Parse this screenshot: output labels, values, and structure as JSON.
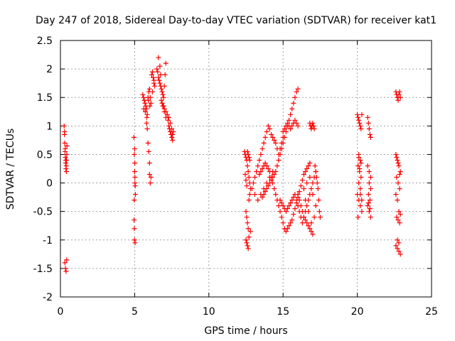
{
  "chart_data": {
    "type": "scatter",
    "title": "Day 247 of 2018, Sidereal Day-to-day VTEC variation (SDTVAR) for receiver kat1",
    "xlabel": "GPS time / hours",
    "ylabel": "SDTVAR / TECUs",
    "xlim": [
      0,
      25
    ],
    "ylim": [
      -2,
      2.5
    ],
    "xticks": [
      "0",
      "5",
      "10",
      "15",
      "20",
      "25"
    ],
    "yticks": [
      "-2",
      "-1.5",
      "-1",
      "-0.5",
      "0",
      "0.5",
      "1",
      "1.5",
      "2",
      "2.5"
    ],
    "grid": true,
    "marker": "+",
    "color": "#ff0000",
    "series": [
      {
        "name": "SDTVAR",
        "x": [
          0.25,
          0.27,
          0.29,
          0.31,
          0.33,
          0.35,
          0.37,
          0.39,
          0.41,
          0.43,
          0.28,
          0.32,
          0.36,
          0.4,
          0.44,
          0.3,
          0.34,
          0.38,
          0.42,
          4.95,
          4.98,
          5.0,
          5.02,
          5.05,
          4.97,
          5.01,
          5.04,
          4.96,
          4.99,
          5.03,
          4.98,
          5.0,
          5.02,
          5.55,
          5.6,
          5.65,
          5.7,
          5.75,
          5.8,
          5.85,
          5.9,
          5.95,
          6.0,
          6.05,
          6.1,
          5.62,
          5.72,
          5.82,
          5.92,
          6.02,
          5.8,
          5.85,
          5.9,
          5.95,
          6.0,
          6.0,
          6.05,
          6.1,
          6.15,
          6.2,
          6.25,
          6.3,
          6.35,
          6.2,
          6.3,
          6.5,
          6.55,
          6.6,
          6.65,
          6.7,
          6.75,
          6.8,
          6.85,
          6.9,
          6.95,
          7.0,
          7.05,
          7.1,
          6.6,
          6.7,
          6.8,
          6.9,
          7.0,
          7.1,
          6.75,
          6.85,
          6.95,
          7.0,
          7.1,
          7.2,
          7.25,
          7.3,
          7.35,
          7.4,
          7.45,
          7.5,
          7.55,
          7.6,
          7.3,
          7.4,
          7.5,
          7.55,
          12.4,
          12.45,
          12.5,
          12.55,
          12.6,
          12.65,
          12.7,
          12.75,
          12.8,
          12.5,
          12.55,
          12.6,
          12.65,
          12.7,
          12.5,
          12.55,
          12.6,
          12.65,
          12.7,
          12.75,
          12.45,
          12.5,
          12.55,
          12.6,
          12.65,
          12.7,
          12.75,
          12.8,
          12.9,
          13.0,
          13.1,
          13.2,
          13.3,
          13.4,
          13.5,
          13.6,
          13.7,
          13.8,
          13.9,
          14.0,
          14.1,
          14.2,
          14.3,
          14.4,
          14.5,
          14.6,
          14.7,
          14.8,
          14.9,
          15.0,
          13.1,
          13.3,
          13.5,
          13.7,
          13.9,
          14.1,
          14.3,
          13.6,
          13.7,
          13.8,
          13.9,
          14.0,
          14.1,
          14.2,
          14.3,
          14.4,
          14.5,
          14.6,
          14.7,
          14.8,
          14.9,
          15.0,
          15.1,
          15.2,
          15.3,
          15.4,
          15.5,
          15.6,
          15.7,
          15.8,
          15.9,
          16.0,
          13.4,
          13.5,
          13.6,
          13.7,
          13.8,
          13.9,
          14.0,
          14.1,
          14.2,
          14.3,
          14.4,
          14.5,
          14.6,
          14.7,
          14.8,
          14.9,
          15.0,
          15.1,
          15.2,
          15.3,
          15.4,
          15.5,
          15.6,
          15.7,
          15.8,
          15.9,
          16.0,
          16.1,
          16.2,
          16.3,
          16.4,
          16.5,
          16.6,
          16.7,
          16.8,
          14.8,
          14.9,
          15.0,
          15.1,
          15.2,
          15.3,
          15.4,
          15.5,
          15.6,
          15.7,
          15.8,
          15.9,
          16.0,
          16.1,
          16.2,
          16.3,
          16.4,
          16.5,
          16.6,
          16.7,
          16.8,
          16.9,
          17.0,
          17.1,
          17.2,
          15.0,
          15.1,
          15.2,
          15.3,
          15.4,
          15.5,
          15.6,
          15.7,
          15.8,
          15.9,
          16.0,
          16.0,
          16.1,
          16.2,
          16.3,
          16.4,
          16.5,
          16.6,
          16.7,
          16.8,
          16.9,
          17.0,
          17.1,
          17.2,
          16.4,
          16.6,
          16.8,
          17.0,
          16.5,
          16.7,
          16.9,
          16.8,
          16.85,
          16.9,
          16.95,
          17.0,
          17.05,
          17.1,
          17.15,
          17.2,
          17.25,
          17.3,
          17.35,
          17.4,
          17.45,
          17.5,
          20.0,
          20.05,
          20.1,
          20.15,
          20.2,
          20.25,
          20.3,
          20.1,
          20.2,
          20.05,
          20.15,
          20.25,
          20.1,
          20.2,
          20.0,
          20.1,
          20.2,
          20.3,
          20.05,
          20.15,
          20.25,
          20.1,
          20.2,
          20.3,
          20.7,
          20.75,
          20.8,
          20.85,
          20.9,
          20.7,
          20.8,
          20.9,
          20.75,
          20.85,
          20.7,
          20.8,
          20.9,
          20.75,
          20.85,
          20.8,
          20.9,
          22.6,
          22.65,
          22.7,
          22.75,
          22.8,
          22.85,
          22.9,
          22.6,
          22.7,
          22.8,
          22.9,
          22.65,
          22.75,
          22.85,
          22.6,
          22.7,
          22.8,
          22.9,
          22.65,
          22.75,
          22.85,
          22.7,
          22.8,
          22.6,
          22.7,
          22.8,
          22.9,
          22.65,
          22.75,
          22.85
        ],
        "y": [
          1.0,
          0.85,
          0.7,
          0.55,
          0.45,
          0.35,
          0.25,
          0.3,
          0.4,
          0.5,
          0.9,
          0.6,
          0.4,
          0.2,
          0.65,
          -1.4,
          -1.5,
          -1.55,
          -1.35,
          0.8,
          0.5,
          0.2,
          0.0,
          -0.2,
          -0.3,
          0.35,
          -0.05,
          -0.65,
          -1.0,
          -1.05,
          -0.8,
          0.6,
          0.1,
          1.55,
          1.5,
          1.45,
          1.4,
          1.35,
          1.3,
          1.2,
          1.5,
          1.6,
          1.65,
          1.5,
          1.4,
          1.3,
          1.25,
          1.15,
          1.45,
          1.35,
          1.05,
          0.95,
          0.7,
          0.55,
          0.35,
          0.15,
          0.0,
          0.1,
          1.9,
          1.95,
          1.85,
          1.75,
          1.7,
          1.6,
          1.8,
          2.0,
          1.95,
          1.85,
          1.8,
          1.75,
          1.7,
          1.65,
          1.6,
          1.55,
          1.5,
          1.7,
          1.9,
          2.1,
          2.2,
          2.05,
          1.45,
          1.35,
          1.3,
          1.25,
          1.9,
          1.4,
          1.35,
          1.25,
          1.15,
          1.2,
          1.1,
          1.0,
          0.95,
          0.9,
          0.85,
          0.8,
          0.75,
          0.9,
          1.15,
          1.05,
          0.95,
          0.85,
          0.55,
          0.5,
          0.45,
          0.4,
          0.3,
          0.2,
          0.1,
          0.0,
          -0.1,
          -1.0,
          -1.05,
          -1.1,
          -1.15,
          -0.95,
          -0.5,
          -0.6,
          -0.7,
          -0.8,
          -0.3,
          -0.2,
          0.15,
          0.05,
          -0.05,
          0.55,
          0.5,
          0.45,
          0.4,
          -0.85,
          -0.1,
          0.0,
          0.1,
          0.2,
          0.3,
          0.4,
          0.5,
          0.6,
          0.7,
          0.8,
          0.9,
          1.0,
          0.95,
          0.85,
          0.8,
          0.75,
          0.7,
          0.6,
          0.5,
          0.6,
          0.7,
          0.8,
          -0.2,
          -0.3,
          -0.2,
          -0.1,
          0.0,
          0.1,
          0.2,
          -0.25,
          -0.2,
          -0.15,
          -0.1,
          -0.05,
          0.0,
          0.05,
          0.1,
          0.15,
          0.2,
          0.3,
          0.4,
          0.5,
          0.6,
          0.7,
          0.8,
          0.9,
          1.0,
          1.1,
          1.2,
          1.3,
          1.4,
          1.5,
          1.6,
          1.65,
          0.15,
          0.2,
          0.25,
          0.3,
          0.35,
          0.3,
          0.25,
          0.2,
          0.1,
          0.0,
          -0.1,
          -0.2,
          -0.3,
          -0.4,
          -0.5,
          -0.6,
          -0.7,
          -0.8,
          -0.85,
          -0.8,
          -0.75,
          -0.7,
          -0.65,
          -0.55,
          -0.45,
          -0.35,
          -0.25,
          -0.15,
          -0.05,
          0.05,
          0.15,
          0.2,
          0.25,
          0.3,
          0.35,
          -0.3,
          -0.35,
          -0.4,
          -0.45,
          -0.5,
          -0.45,
          -0.4,
          -0.35,
          -0.3,
          -0.25,
          -0.2,
          -0.3,
          -0.4,
          -0.5,
          -0.6,
          -0.7,
          -0.6,
          -0.5,
          -0.4,
          -0.3,
          -0.2,
          -0.1,
          0.0,
          0.1,
          0.2,
          0.9,
          0.95,
          1.0,
          1.05,
          1.0,
          0.95,
          1.0,
          1.05,
          1.1,
          1.05,
          1.0,
          -0.2,
          -0.3,
          -0.4,
          -0.5,
          -0.6,
          -0.65,
          -0.7,
          -0.75,
          -0.8,
          -0.85,
          -0.9,
          -0.6,
          -0.4,
          -0.1,
          0.0,
          0.1,
          -0.2,
          -0.3,
          -0.5,
          -0.7,
          1.05,
          1.0,
          0.95,
          1.0,
          1.05,
          1.0,
          0.95,
          0.3,
          0.2,
          0.1,
          0.0,
          -0.1,
          -0.3,
          -0.5,
          -0.6,
          1.2,
          1.15,
          1.1,
          1.05,
          1.0,
          0.95,
          1.2,
          0.5,
          0.4,
          0.3,
          0.2,
          0.1,
          0.0,
          -0.1,
          -0.2,
          -0.3,
          -0.4,
          -0.5,
          -0.6,
          0.25,
          0.35,
          0.45,
          -0.2,
          -0.3,
          1.15,
          1.05,
          0.95,
          0.85,
          0.8,
          0.3,
          0.2,
          0.1,
          -0.2,
          -0.3,
          -0.4,
          -0.5,
          -0.6,
          -0.35,
          -0.45,
          0.0,
          -0.1,
          1.6,
          1.55,
          1.5,
          1.45,
          1.55,
          1.6,
          1.5,
          0.5,
          0.4,
          0.3,
          0.2,
          0.1,
          0.0,
          -0.1,
          -0.2,
          -0.3,
          -0.5,
          -0.55,
          -0.6,
          -0.65,
          -0.7,
          -1.0,
          -1.05,
          -1.1,
          -1.15,
          -1.2,
          -1.25,
          0.45,
          0.35,
          0.15
        ]
      }
    ]
  }
}
